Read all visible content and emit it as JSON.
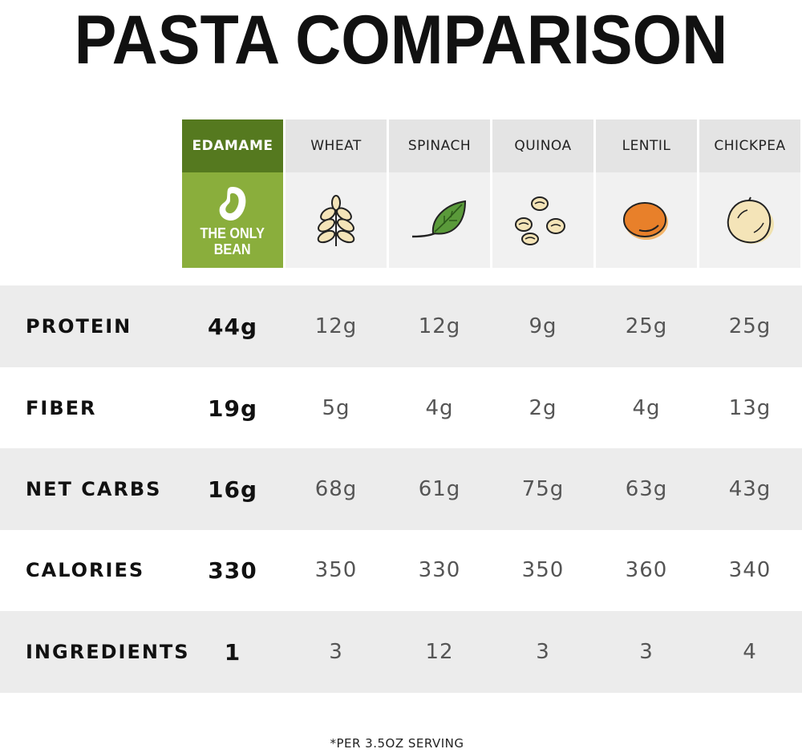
{
  "title": "PASTA COMPARISON",
  "featured_tagline_line1": "THE ONLY",
  "featured_tagline_line2": "BEAN",
  "columns": [
    {
      "label": "EDAMAME",
      "icon": "bean-icon"
    },
    {
      "label": "WHEAT",
      "icon": "wheat-icon"
    },
    {
      "label": "SPINACH",
      "icon": "spinach-leaf-icon"
    },
    {
      "label": "QUINOA",
      "icon": "quinoa-seeds-icon"
    },
    {
      "label": "LENTIL",
      "icon": "lentil-icon"
    },
    {
      "label": "CHICKPEA",
      "icon": "chickpea-icon"
    }
  ],
  "rows": [
    {
      "label": "PROTEIN",
      "values": [
        "44g",
        "12g",
        "12g",
        "9g",
        "25g",
        "25g"
      ]
    },
    {
      "label": "FIBER",
      "values": [
        "19g",
        "5g",
        "4g",
        "2g",
        "4g",
        "13g"
      ]
    },
    {
      "label": "NET CARBS",
      "values": [
        "16g",
        "68g",
        "61g",
        "75g",
        "63g",
        "43g"
      ]
    },
    {
      "label": "CALORIES",
      "values": [
        "330",
        "350",
        "330",
        "350",
        "360",
        "340"
      ]
    },
    {
      "label": "INGREDIENTS",
      "values": [
        "1",
        "3",
        "12",
        "3",
        "3",
        "4"
      ]
    }
  ],
  "footnote": "*PER 3.5OZ SERVING",
  "colors": {
    "featured_dark": "#55791f",
    "featured_light": "#8aae3c",
    "row_shade": "#ececec",
    "lentil": "#e8802a",
    "chickpea": "#f0e2b0"
  }
}
